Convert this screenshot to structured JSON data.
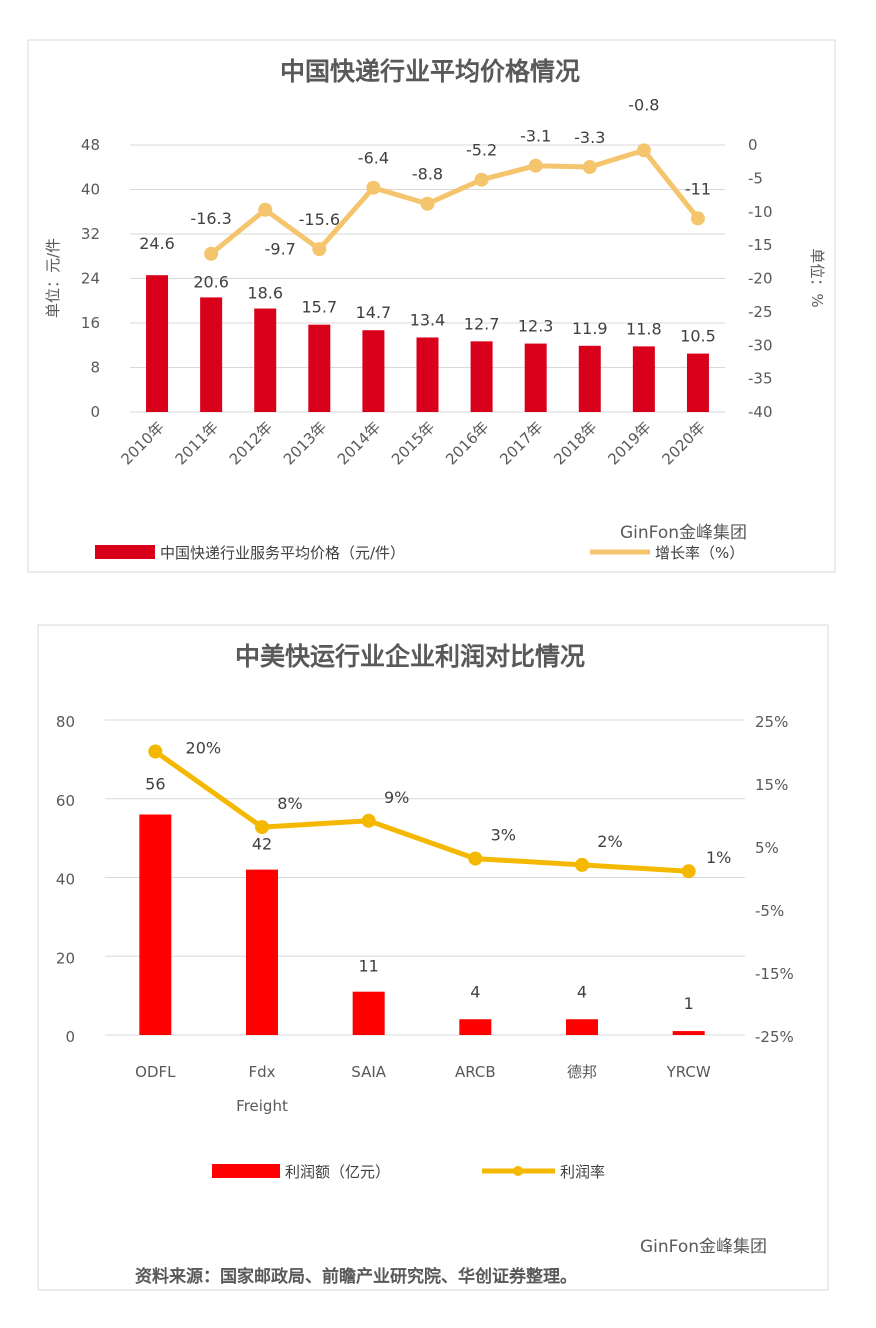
{
  "chart_data": [
    {
      "type": "bar+line",
      "title": "中国快递行业平均价格情况",
      "categories": [
        "2010年",
        "2011年",
        "2012年",
        "2013年",
        "2014年",
        "2015年",
        "2016年",
        "2017年",
        "2018年",
        "2019年",
        "2020年"
      ],
      "series": [
        {
          "name": "中国快递行业服务平均价格（元/件）",
          "type": "bar",
          "axis": "left",
          "color": "#d9001b",
          "values": [
            24.6,
            20.6,
            18.6,
            15.7,
            14.7,
            13.4,
            12.7,
            12.3,
            11.9,
            11.8,
            10.5
          ]
        },
        {
          "name": "增长率（%）",
          "type": "line",
          "axis": "right",
          "color": "#f5c56e",
          "values": [
            null,
            -16.3,
            -9.7,
            -15.6,
            -6.4,
            -8.8,
            -5.2,
            -3.1,
            -3.3,
            -0.8,
            -11
          ]
        }
      ],
      "ylabel": "单位：元/件",
      "y2label": "单位：%",
      "ylim": [
        0,
        48
      ],
      "y2lim": [
        -40,
        0
      ],
      "yticks": [
        0,
        8,
        16,
        24,
        32,
        40,
        48
      ],
      "y2ticks": [
        0,
        -5,
        -10,
        -15,
        -20,
        -25,
        -30,
        -35,
        -40
      ],
      "legend": "bottom",
      "watermark": "GinFon金峰集团",
      "grid": true
    },
    {
      "type": "bar+line",
      "title": "中美快运行业企业利润对比情况",
      "categories": [
        "ODFL",
        "Fdx Freight",
        "SAIA",
        "ARCB",
        "德邦",
        "YRCW"
      ],
      "series": [
        {
          "name": "利润额（亿元）",
          "type": "bar",
          "axis": "left",
          "color": "#ff0000",
          "values": [
            56,
            42,
            11,
            4,
            4,
            1
          ]
        },
        {
          "name": "利润率",
          "type": "line",
          "axis": "right",
          "color": "#f5b800",
          "values": [
            20,
            8,
            9,
            3,
            2,
            1
          ],
          "unit": "%"
        }
      ],
      "ylim": [
        0,
        80
      ],
      "y2lim": [
        -25,
        25
      ],
      "yticks": [
        0,
        20,
        40,
        60,
        80
      ],
      "y2ticks": [
        "25%",
        "15%",
        "5%",
        "-5%",
        "-15%",
        "-25%"
      ],
      "legend": "bottom",
      "watermark": "GinFon金峰集团",
      "source": "资料来源：国家邮政局、前瞻产业研究院、华创证券整理。",
      "grid": true
    }
  ]
}
